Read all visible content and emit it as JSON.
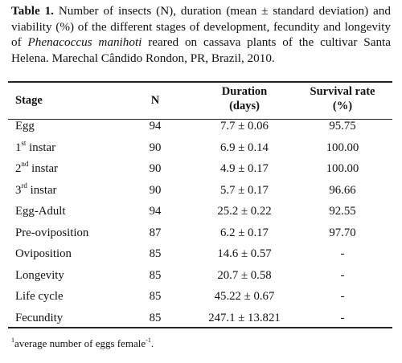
{
  "caption": {
    "label": "Table 1.",
    "text_a": " Number of insects (N), duration (mean ± standard deviation) and viability (%) of the different stages of development, fecundity and longevity of ",
    "species": "Phenacoccus manihoti",
    "text_b": " reared on cassava plants of the cultivar Santa Helena. Marechal Cândido Rondon, PR, Brazil, 2010."
  },
  "table": {
    "headers": {
      "stage": "Stage",
      "n": "N",
      "duration_line1": "Duration",
      "duration_line2": "(days)",
      "survival_line1": "Survival rate",
      "survival_line2": "(%)"
    },
    "rows": [
      {
        "stage": "Egg",
        "sup": "",
        "stage_rest": "",
        "n": "94",
        "duration": "7.7 ± 0.06",
        "survival": "95.75"
      },
      {
        "stage": "1",
        "sup": "st",
        "stage_rest": " instar",
        "n": "90",
        "duration": "6.9 ± 0.14",
        "survival": "100.00"
      },
      {
        "stage": "2",
        "sup": "nd",
        "stage_rest": " instar",
        "n": "90",
        "duration": "4.9 ± 0.17",
        "survival": "100.00"
      },
      {
        "stage": "3",
        "sup": "rd",
        "stage_rest": " instar",
        "n": "90",
        "duration": "5.7 ± 0.17",
        "survival": "96.66"
      },
      {
        "stage": "Egg-Adult",
        "sup": "",
        "stage_rest": "",
        "n": "94",
        "duration": "25.2 ± 0.22",
        "survival": "92.55"
      },
      {
        "stage": "Pre-oviposition",
        "sup": "",
        "stage_rest": "",
        "n": "87",
        "duration": "6.2 ± 0.17",
        "survival": "97.70"
      },
      {
        "stage": "Oviposition",
        "sup": "",
        "stage_rest": "",
        "n": "85",
        "duration": "14.6 ± 0.57",
        "survival": "-"
      },
      {
        "stage": "Longevity",
        "sup": "",
        "stage_rest": "",
        "n": "85",
        "duration": "20.7 ± 0.58",
        "survival": "-"
      },
      {
        "stage": "Life cycle",
        "sup": "",
        "stage_rest": "",
        "n": "85",
        "duration": "45.22 ± 0.67",
        "survival": "-"
      },
      {
        "stage": "Fecundity",
        "sup": "",
        "stage_rest": "",
        "n": "85",
        "duration": "247.1 ± 13.821",
        "survival": "-"
      }
    ]
  },
  "footnote": {
    "marker": "1",
    "text": "average number of eggs female",
    "exponent": "-1",
    "end": "."
  }
}
